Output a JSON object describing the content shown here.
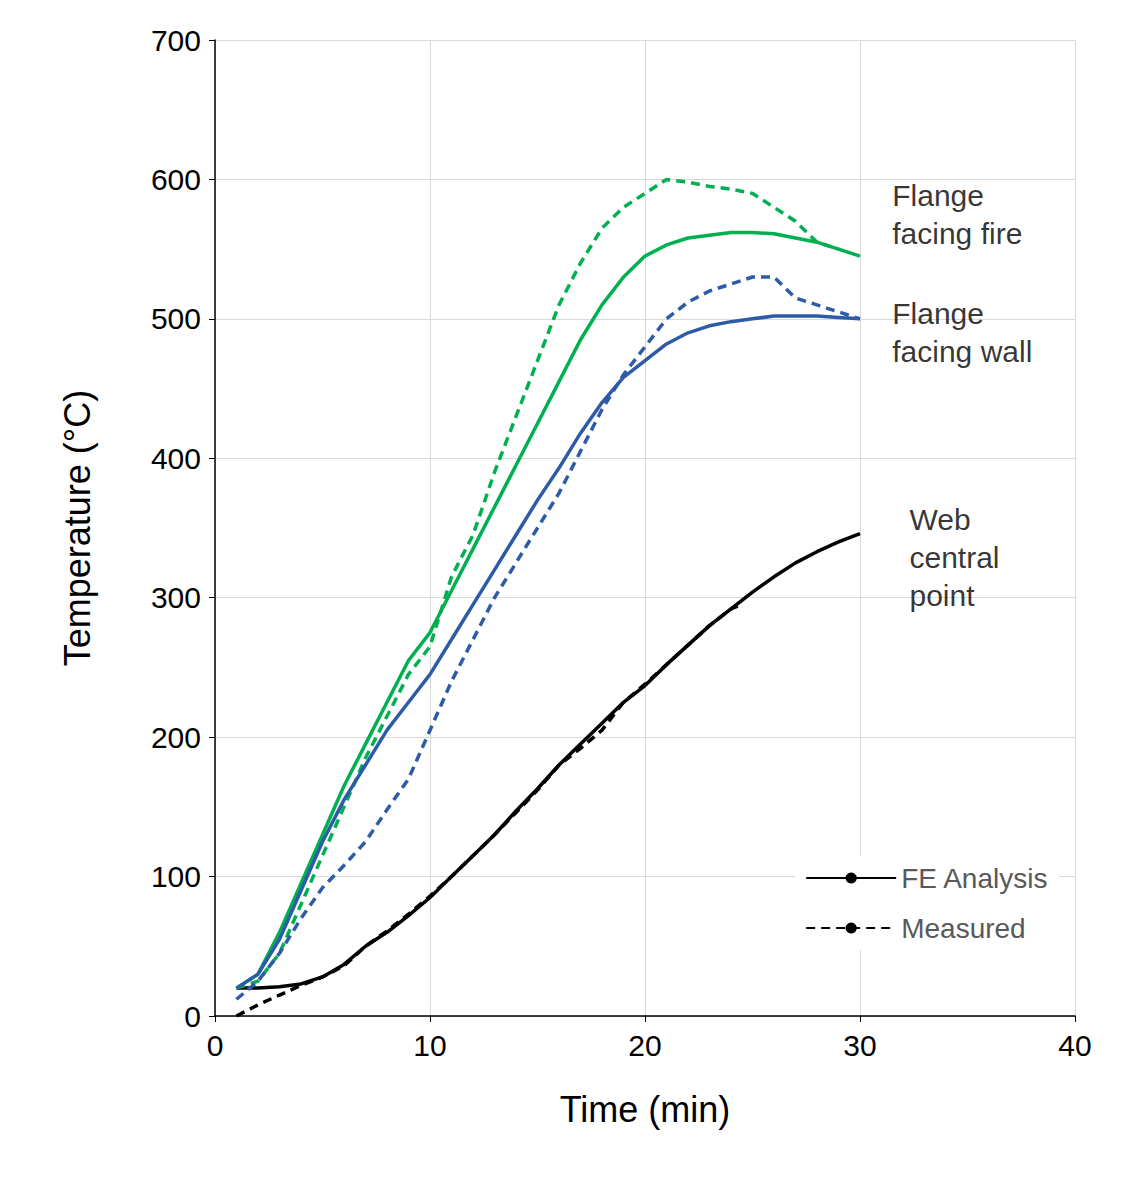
{
  "chart_data": {
    "type": "line",
    "x_label": "Time (min)",
    "y_label": "Temperature (°C)",
    "xlim": [
      0,
      40
    ],
    "xticks": [
      0,
      10,
      20,
      30,
      40
    ],
    "ylim": [
      0,
      700
    ],
    "yticks": [
      0,
      100,
      200,
      300,
      400,
      500,
      600,
      700
    ],
    "grid": true,
    "legend": "lower right",
    "series": [
      {
        "name": "FE Analysis",
        "color": "#000000",
        "line_style": "solid",
        "x": [
          1,
          2,
          3,
          4,
          5,
          6,
          7,
          8,
          9,
          10,
          11,
          12,
          13,
          14,
          15,
          16,
          17,
          18,
          19,
          20,
          21,
          22,
          23,
          24,
          25,
          26,
          27,
          28,
          29,
          30
        ],
        "values": [
          20,
          20,
          21,
          23,
          28,
          37,
          50,
          60,
          72,
          85,
          100,
          115,
          130,
          147,
          163,
          180,
          195,
          210,
          225,
          237,
          252,
          266,
          280,
          292,
          304,
          315,
          325,
          333,
          340,
          346
        ]
      },
      {
        "name": "Measured",
        "color": "#000000",
        "line_style": "dashed",
        "x": [
          1,
          2,
          3,
          4,
          5,
          6,
          7,
          8,
          9,
          10,
          11,
          12,
          13,
          14,
          15,
          16,
          17,
          18,
          19,
          20,
          21,
          22,
          23,
          24,
          24.5
        ],
        "values": [
          0,
          8,
          15,
          22,
          28,
          36,
          50,
          61,
          73,
          86,
          100,
          115,
          130,
          146,
          162,
          180,
          192,
          205,
          225,
          238,
          252,
          266,
          280,
          292,
          295
        ]
      },
      {
        "name": "FE Analysis",
        "color": "#00b050",
        "line_style": "solid",
        "x": [
          1,
          2,
          3,
          4,
          5,
          6,
          7,
          8,
          9,
          10,
          11,
          12,
          13,
          14,
          15,
          16,
          17,
          18,
          19,
          20,
          21,
          22,
          23,
          24,
          25,
          26,
          27,
          28,
          29,
          30
        ],
        "values": [
          20,
          30,
          60,
          95,
          130,
          165,
          195,
          225,
          255,
          275,
          305,
          335,
          365,
          395,
          425,
          455,
          485,
          510,
          530,
          545,
          553,
          558,
          560,
          562,
          562,
          561,
          558,
          555,
          550,
          545
        ]
      },
      {
        "name": "Measured",
        "color": "#00b050",
        "line_style": "dashed",
        "x": [
          1,
          2,
          3,
          4,
          5,
          6,
          7,
          8,
          9,
          10,
          11,
          12,
          13,
          14,
          15,
          16,
          17,
          18,
          19,
          20,
          21,
          22,
          23,
          24,
          25,
          26,
          27,
          28,
          29
        ],
        "values": [
          20,
          25,
          45,
          80,
          115,
          150,
          185,
          215,
          245,
          265,
          315,
          345,
          390,
          430,
          470,
          510,
          540,
          565,
          580,
          590,
          600,
          598,
          595,
          593,
          590,
          580,
          570,
          555,
          550
        ]
      },
      {
        "name": "FE Analysis",
        "color": "#2e5ba8",
        "line_style": "solid",
        "x": [
          1,
          2,
          3,
          4,
          5,
          6,
          7,
          8,
          9,
          10,
          11,
          12,
          13,
          14,
          15,
          16,
          17,
          18,
          19,
          20,
          21,
          22,
          23,
          24,
          25,
          26,
          27,
          28,
          29,
          30
        ],
        "values": [
          20,
          30,
          55,
          90,
          125,
          155,
          180,
          205,
          225,
          245,
          270,
          295,
          320,
          345,
          370,
          393,
          418,
          440,
          458,
          470,
          482,
          490,
          495,
          498,
          500,
          502,
          502,
          502,
          501,
          500
        ]
      },
      {
        "name": "Measured",
        "color": "#2e5ba8",
        "line_style": "dashed",
        "x": [
          1,
          2,
          3,
          4,
          5,
          6,
          7,
          8,
          9,
          10,
          11,
          12,
          13,
          14,
          15,
          16,
          17,
          18,
          19,
          20,
          21,
          22,
          23,
          24,
          25,
          26,
          27,
          28,
          29,
          30
        ],
        "values": [
          12,
          25,
          45,
          70,
          92,
          108,
          125,
          148,
          170,
          205,
          240,
          270,
          300,
          325,
          350,
          375,
          405,
          435,
          460,
          480,
          500,
          512,
          520,
          525,
          530,
          530,
          515,
          510,
          505,
          500
        ]
      }
    ],
    "annotations": [
      {
        "text": "Flange\nfacing fire",
        "x": 31.5,
        "y": 575
      },
      {
        "text": "Flange\nfacing wall",
        "x": 31.5,
        "y": 490
      },
      {
        "text": "Web\ncentral\npoint",
        "x": 32.3,
        "y": 329
      }
    ]
  }
}
